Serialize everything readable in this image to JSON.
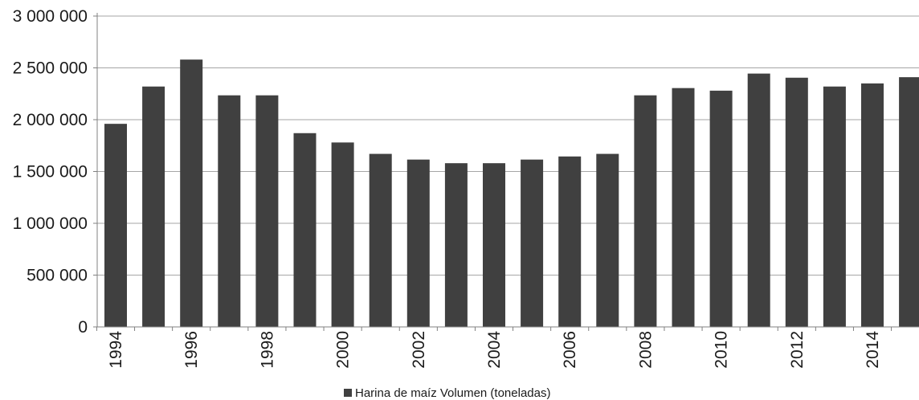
{
  "chart_data": {
    "type": "bar",
    "categories": [
      "1994",
      "1995",
      "1996",
      "1997",
      "1998",
      "1999",
      "2000",
      "2001",
      "2002",
      "2003",
      "2004",
      "2005",
      "2006",
      "2007",
      "2008",
      "2009",
      "2010",
      "2011",
      "2012",
      "2013",
      "2014",
      "2015"
    ],
    "x_tick_labels": [
      "1994",
      "1996",
      "1998",
      "2000",
      "2002",
      "2004",
      "2006",
      "2008",
      "2010",
      "2012",
      "2014"
    ],
    "series": [
      {
        "name": "Harina de maíz Volumen (toneladas)",
        "color": "#404040",
        "values": [
          1960000,
          2320000,
          2580000,
          2235000,
          2235000,
          1870000,
          1780000,
          1670000,
          1615000,
          1580000,
          1580000,
          1615000,
          1645000,
          1670000,
          2235000,
          2305000,
          2280000,
          2445000,
          2405000,
          2320000,
          2350000,
          2410000
        ]
      }
    ],
    "y_ticks": [
      0,
      500000,
      1000000,
      1500000,
      2000000,
      2500000,
      3000000
    ],
    "y_tick_labels": [
      "0",
      "500 000",
      "1 000 000",
      "1 500 000",
      "2 000 000",
      "2 500 000",
      "3 000 000"
    ],
    "ylim": [
      0,
      3000000
    ],
    "grid": true,
    "legend_position": "bottom-center"
  }
}
